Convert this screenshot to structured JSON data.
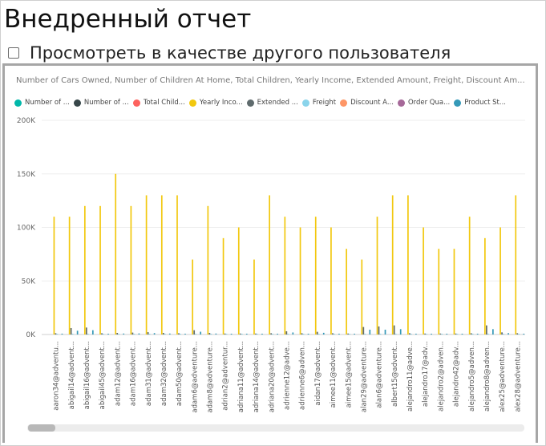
{
  "page": {
    "title": "Внедренный отчет",
    "view_as_label": "Просмотреть в качестве другого пользователя"
  },
  "chart_data": {
    "type": "bar",
    "title": "Number of Cars Owned, Number of Children At Home, Total Children, Yearly Income, Extended Amount, Freight, Discount Am...",
    "legend_position": "top-left",
    "grid": true,
    "ylim": [
      0,
      200000
    ],
    "y_ticks": [
      "0K",
      "50K",
      "100K",
      "150K",
      "200K"
    ],
    "categories": [
      "aaron34@adventu...",
      "abigail14@advent...",
      "abigail16@advent...",
      "abigail45@advent...",
      "adam12@advent...",
      "adam16@advent...",
      "adam31@advent...",
      "adam32@advent...",
      "adam50@advent...",
      "adam6@adventure...",
      "adam8@adventure...",
      "adrian2@adventur...",
      "adriana11@advent...",
      "adriana14@advent...",
      "adriana20@advent...",
      "adrienne12@adve...",
      "adrienne6@adven...",
      "aidan17@advent...",
      "aimee11@advent...",
      "aimee15@advent...",
      "alan29@adventure...",
      "alan6@adventure...",
      "albert15@advent...",
      "alejandro11@adve...",
      "alejandro17@adv...",
      "alejandro2@adven...",
      "alejandro42@adv...",
      "alejandro5@adven...",
      "alejandro8@adven...",
      "alex25@adventure...",
      "alex28@adventure..."
    ],
    "series": [
      {
        "name": "Number of ...",
        "color": "#01B8AA",
        "values": [
          0,
          0,
          0,
          0,
          0,
          0,
          0,
          0,
          0,
          0,
          0,
          0,
          0,
          0,
          0,
          0,
          0,
          0,
          0,
          0,
          0,
          0,
          0,
          0,
          0,
          0,
          0,
          0,
          0,
          0,
          0
        ]
      },
      {
        "name": "Number of ...",
        "color": "#374649",
        "values": [
          0,
          0,
          0,
          0,
          0,
          0,
          0,
          0,
          0,
          0,
          0,
          0,
          0,
          0,
          0,
          0,
          0,
          0,
          0,
          0,
          0,
          0,
          0,
          0,
          0,
          0,
          0,
          0,
          0,
          0,
          0
        ]
      },
      {
        "name": "Total Child...",
        "color": "#FD625E",
        "values": [
          0,
          0,
          0,
          0,
          0,
          0,
          0,
          0,
          0,
          0,
          0,
          0,
          0,
          0,
          0,
          0,
          0,
          0,
          0,
          0,
          0,
          0,
          0,
          0,
          0,
          0,
          0,
          0,
          0,
          0,
          0
        ]
      },
      {
        "name": "Yearly Inco...",
        "color": "#F2C80F",
        "values": [
          110000,
          110000,
          120000,
          120000,
          150000,
          120000,
          130000,
          130000,
          130000,
          70000,
          120000,
          90000,
          100000,
          70000,
          130000,
          110000,
          100000,
          110000,
          100000,
          80000,
          70000,
          110000,
          130000,
          130000,
          100000,
          80000,
          80000,
          110000,
          90000,
          100000,
          130000
        ]
      },
      {
        "name": "Extended ...",
        "color": "#5F6B6D",
        "values": [
          1200,
          6000,
          6500,
          1200,
          1500,
          1800,
          2200,
          1500,
          1200,
          4000,
          1500,
          900,
          900,
          900,
          1200,
          3000,
          1200,
          2500,
          1200,
          900,
          7000,
          7500,
          8500,
          1200,
          900,
          900,
          900,
          1200,
          8500,
          2000,
          1200
        ]
      },
      {
        "name": "Freight",
        "color": "#8AD4EB",
        "values": [
          500,
          600,
          600,
          400,
          500,
          500,
          600,
          400,
          400,
          700,
          400,
          300,
          300,
          300,
          400,
          600,
          400,
          500,
          400,
          300,
          700,
          700,
          800,
          400,
          300,
          300,
          300,
          400,
          800,
          500,
          400
        ]
      },
      {
        "name": "Discount A...",
        "color": "#FE9666",
        "values": [
          0,
          0,
          0,
          0,
          0,
          0,
          0,
          0,
          0,
          0,
          0,
          0,
          0,
          0,
          0,
          0,
          0,
          0,
          0,
          0,
          0,
          0,
          0,
          0,
          0,
          0,
          0,
          0,
          0,
          0,
          0
        ]
      },
      {
        "name": "Order Qua...",
        "color": "#A66999",
        "values": [
          0,
          0,
          0,
          0,
          0,
          0,
          0,
          0,
          0,
          0,
          0,
          0,
          0,
          0,
          0,
          0,
          0,
          0,
          0,
          0,
          0,
          0,
          0,
          0,
          0,
          0,
          0,
          0,
          0,
          0,
          0
        ]
      },
      {
        "name": "Product St...",
        "color": "#3599B8",
        "values": [
          800,
          3500,
          4000,
          700,
          900,
          1000,
          1300,
          900,
          700,
          2600,
          900,
          600,
          600,
          600,
          700,
          1900,
          700,
          1600,
          700,
          600,
          4500,
          4500,
          5000,
          700,
          600,
          600,
          600,
          700,
          5000,
          1300,
          700
        ]
      }
    ]
  }
}
